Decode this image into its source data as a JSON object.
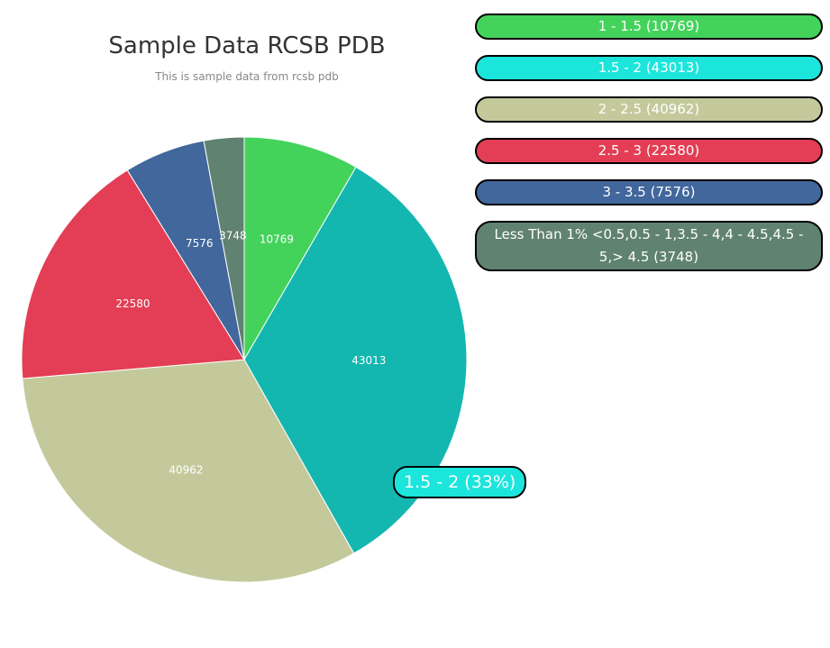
{
  "chart_data": {
    "type": "pie",
    "title": "Sample Data RCSB PDB",
    "subtitle": "This is sample data from rcsb pdb",
    "categories": [
      "1 - 1.5",
      "1.5 - 2",
      "2 - 2.5",
      "2.5 - 3",
      "3 - 3.5",
      "Less Than 1% <0.5,0.5 - 1,3.5 - 4,4 - 4.5,4.5 - 5,> 4.5"
    ],
    "values": [
      10769,
      43013,
      40962,
      22580,
      7576,
      3748
    ],
    "value_labels": [
      "10769",
      "43013",
      "40962",
      "22580",
      "7576",
      "3748"
    ],
    "colors": [
      "#43d35b",
      "#14b7b0",
      "#c4c99c",
      "#e33e55",
      "#41679c",
      "#608270"
    ],
    "legend_colors": [
      "#43d35b",
      "#1ce5dc",
      "#c4c99c",
      "#e33e55",
      "#41679c",
      "#608270"
    ],
    "legend_placement": "right",
    "legend": [
      "1 - 1.5 (10769)",
      "1.5 - 2 (43013)",
      "2 - 2.5 (40962)",
      "2.5 - 3 (22580)",
      "3 - 3.5 (7576)",
      "Less Than 1% <0.5,0.5 - 1,3.5 - 4,4 - 4.5,4.5 - 5,> 4.5 (3748)"
    ]
  },
  "tooltip": {
    "text": "1.5 - 2 (33%)",
    "color": "#1ce5dc"
  }
}
